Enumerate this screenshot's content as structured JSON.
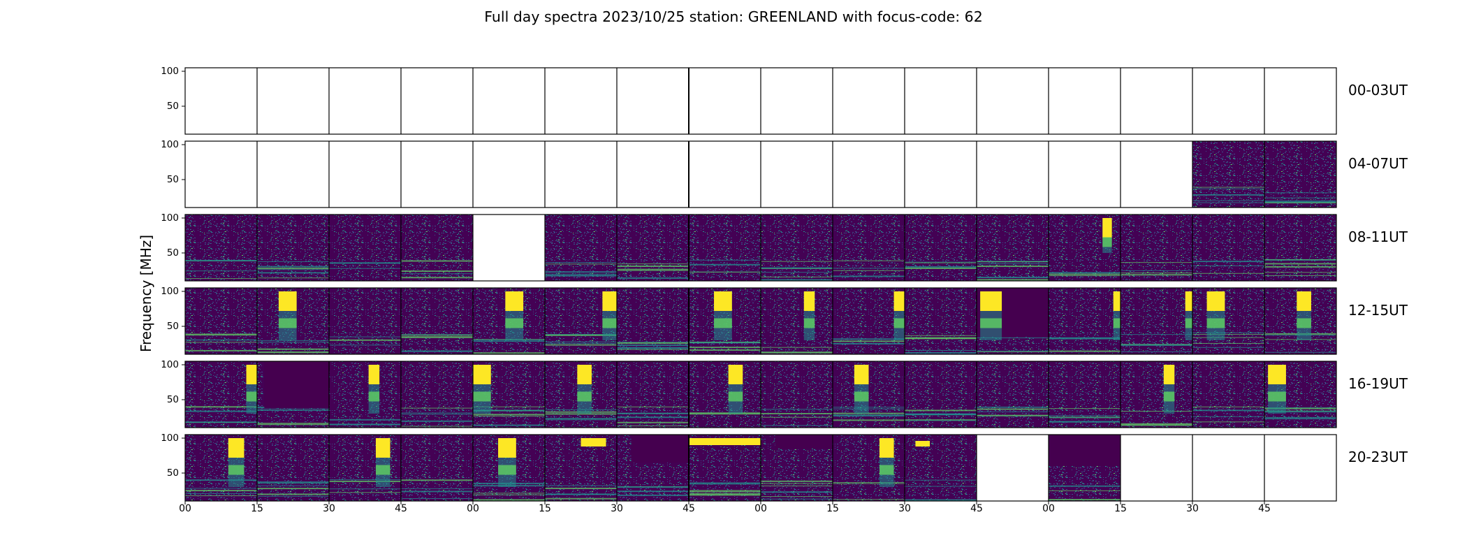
{
  "title": "Full day spectra 2023/10/25 station: GREENLAND with focus-code: 62",
  "chart_data": {
    "type": "heatmap",
    "title": "Full day spectra 2023/10/25 station: GREENLAND with focus-code: 62",
    "ylabel": "Frequency [MHz]",
    "xlabel": "",
    "y_ticks": [
      "50",
      "100"
    ],
    "ylim": [
      10,
      105
    ],
    "x_ticks": [
      "00",
      "15",
      "30",
      "45",
      "00",
      "15",
      "30",
      "45",
      "00",
      "15",
      "30",
      "45",
      "00",
      "15",
      "30",
      "45"
    ],
    "colormap": [
      "#440154",
      "#3b528b",
      "#21908d",
      "#5dc963",
      "#fde725"
    ],
    "row_labels": [
      "00-03UT",
      "04-07UT",
      "08-11UT",
      "12-15UT",
      "16-19UT",
      "20-23UT"
    ],
    "panels_per_row": 16,
    "data_available": [
      [
        0,
        0,
        0,
        0,
        0,
        0,
        0,
        0,
        0,
        0,
        0,
        0,
        0,
        0,
        0,
        0
      ],
      [
        0,
        0,
        0,
        0,
        0,
        0,
        0,
        0,
        0,
        0,
        0,
        0,
        0,
        0,
        1,
        1
      ],
      [
        1,
        1,
        1,
        1,
        0,
        1,
        1,
        1,
        1,
        1,
        1,
        1,
        1,
        1,
        1,
        1
      ],
      [
        1,
        1,
        1,
        1,
        1,
        1,
        1,
        1,
        1,
        1,
        1,
        1,
        1,
        1,
        1,
        1
      ],
      [
        1,
        1,
        1,
        1,
        1,
        1,
        1,
        1,
        1,
        1,
        1,
        1,
        1,
        1,
        1,
        1
      ],
      [
        1,
        1,
        1,
        1,
        1,
        1,
        1,
        1,
        1,
        1,
        1,
        0,
        1,
        0,
        0,
        0
      ]
    ],
    "bursts": [
      {
        "row": 2,
        "col": 12,
        "t": [
          0.75,
          0.88
        ],
        "f": [
          50,
          100
        ]
      },
      {
        "row": 3,
        "col": 1,
        "t": [
          0.3,
          0.55
        ],
        "f": [
          30,
          100
        ]
      },
      {
        "row": 3,
        "col": 4,
        "t": [
          0.45,
          0.7
        ],
        "f": [
          30,
          100
        ]
      },
      {
        "row": 3,
        "col": 5,
        "t": [
          0.8,
          1.0
        ],
        "f": [
          30,
          100
        ]
      },
      {
        "row": 3,
        "col": 7,
        "t": [
          0.35,
          0.6
        ],
        "f": [
          30,
          100
        ]
      },
      {
        "row": 3,
        "col": 8,
        "t": [
          0.6,
          0.75
        ],
        "f": [
          30,
          100
        ]
      },
      {
        "row": 3,
        "col": 9,
        "t": [
          0.85,
          1.0
        ],
        "f": [
          30,
          100
        ]
      },
      {
        "row": 3,
        "col": 11,
        "t": [
          0.05,
          0.35
        ],
        "f": [
          30,
          100
        ]
      },
      {
        "row": 3,
        "col": 12,
        "t": [
          0.9,
          1.0
        ],
        "f": [
          30,
          100
        ]
      },
      {
        "row": 3,
        "col": 13,
        "t": [
          0.9,
          1.0
        ],
        "f": [
          30,
          100
        ]
      },
      {
        "row": 3,
        "col": 14,
        "t": [
          0.2,
          0.45
        ],
        "f": [
          30,
          100
        ]
      },
      {
        "row": 3,
        "col": 15,
        "t": [
          0.45,
          0.65
        ],
        "f": [
          30,
          100
        ]
      },
      {
        "row": 4,
        "col": 0,
        "t": [
          0.85,
          1.0
        ],
        "f": [
          30,
          100
        ]
      },
      {
        "row": 4,
        "col": 2,
        "t": [
          0.55,
          0.7
        ],
        "f": [
          30,
          100
        ]
      },
      {
        "row": 4,
        "col": 4,
        "t": [
          0.0,
          0.25
        ],
        "f": [
          30,
          100
        ]
      },
      {
        "row": 4,
        "col": 5,
        "t": [
          0.45,
          0.65
        ],
        "f": [
          30,
          100
        ]
      },
      {
        "row": 4,
        "col": 7,
        "t": [
          0.55,
          0.75
        ],
        "f": [
          30,
          100
        ]
      },
      {
        "row": 4,
        "col": 9,
        "t": [
          0.3,
          0.5
        ],
        "f": [
          30,
          100
        ]
      },
      {
        "row": 4,
        "col": 13,
        "t": [
          0.6,
          0.75
        ],
        "f": [
          30,
          100
        ]
      },
      {
        "row": 4,
        "col": 15,
        "t": [
          0.05,
          0.3
        ],
        "f": [
          30,
          100
        ]
      },
      {
        "row": 5,
        "col": 0,
        "t": [
          0.6,
          0.82
        ],
        "f": [
          30,
          100
        ]
      },
      {
        "row": 5,
        "col": 2,
        "t": [
          0.65,
          0.85
        ],
        "f": [
          30,
          100
        ]
      },
      {
        "row": 5,
        "col": 4,
        "t": [
          0.35,
          0.6
        ],
        "f": [
          30,
          100
        ]
      },
      {
        "row": 5,
        "col": 5,
        "t": [
          0.5,
          0.85
        ],
        "f": [
          88,
          100
        ]
      },
      {
        "row": 5,
        "col": 7,
        "t": [
          0.0,
          1.0
        ],
        "f": [
          90,
          100
        ]
      },
      {
        "row": 5,
        "col": 9,
        "t": [
          0.65,
          0.85
        ],
        "f": [
          30,
          100
        ]
      },
      {
        "row": 5,
        "col": 10,
        "t": [
          0.15,
          0.35
        ],
        "f": [
          88,
          96
        ]
      }
    ],
    "dark_blocks": [
      {
        "row": 3,
        "col": 11,
        "t": [
          0.0,
          1.0
        ],
        "f": [
          35,
          105
        ]
      },
      {
        "row": 4,
        "col": 1,
        "t": [
          0.1,
          1.0
        ],
        "f": [
          38,
          105
        ]
      },
      {
        "row": 5,
        "col": 6,
        "t": [
          0.2,
          1.0
        ],
        "f": [
          65,
          105
        ]
      },
      {
        "row": 5,
        "col": 8,
        "t": [
          0.2,
          1.0
        ],
        "f": [
          85,
          105
        ]
      },
      {
        "row": 5,
        "col": 12,
        "t": [
          0.0,
          1.0
        ],
        "f": [
          60,
          105
        ]
      }
    ]
  }
}
